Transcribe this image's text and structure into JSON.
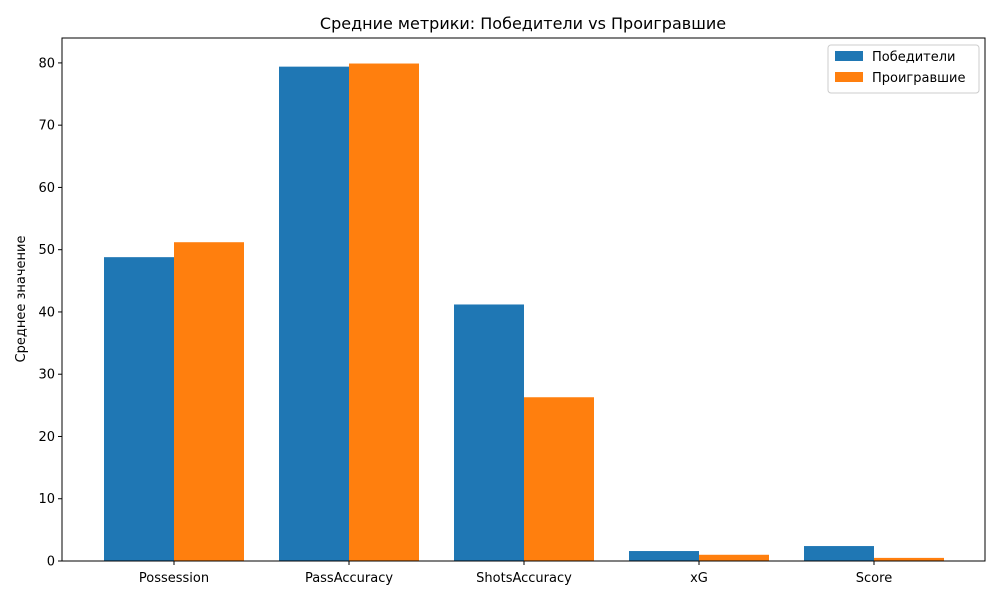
{
  "chart_data": {
    "type": "bar",
    "title": "Средние метрики: Победители vs Проигравшие",
    "xlabel": "",
    "ylabel": "Среднее значение",
    "categories": [
      "Possession",
      "PassAccuracy",
      "ShotsAccuracy",
      "xG",
      "Score"
    ],
    "series": [
      {
        "name": "Победители",
        "color": "#1f77b4",
        "values": [
          48.8,
          79.4,
          41.2,
          1.6,
          2.4
        ]
      },
      {
        "name": "Проигравшие",
        "color": "#ff7f0e",
        "values": [
          51.2,
          79.9,
          26.3,
          1.0,
          0.5
        ]
      }
    ],
    "ylim": [
      0,
      84
    ],
    "yticks": [
      "0",
      "10",
      "20",
      "30",
      "40",
      "50",
      "60",
      "70",
      "80"
    ],
    "grid": false,
    "legend": "top-right"
  }
}
